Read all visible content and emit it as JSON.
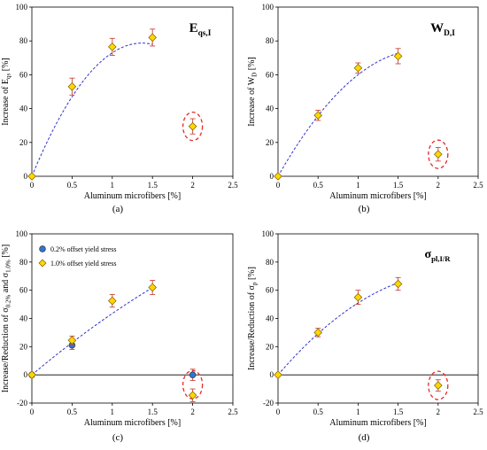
{
  "chart_data": [
    {
      "type": "scatter",
      "panel_label": "(a)",
      "tag": "E",
      "tag_sub": "qs,I",
      "xlabel": "Aluminum microfibers [%]",
      "ylabel": "Increase of E",
      "ylabel_sub": "qs",
      "ylabel_suffix": " [%]",
      "xlim": [
        0,
        2.5
      ],
      "ylim": [
        0,
        100
      ],
      "x_ticks": [
        0,
        0.5,
        1,
        1.5,
        2,
        2.5
      ],
      "y_ticks": [
        0,
        20,
        40,
        60,
        80,
        100
      ],
      "x_tick_labels": [
        "0",
        "0.5",
        "1",
        "1.5",
        "2",
        "2.5"
      ],
      "y_tick_labels": [
        "0",
        "20",
        "40",
        "60",
        "80",
        "100"
      ],
      "series": [
        {
          "marker": "diamond",
          "color": "#FFD700",
          "points": [
            {
              "x": 0,
              "y": 0,
              "err": 0
            },
            {
              "x": 0.5,
              "y": 53,
              "err": 5
            },
            {
              "x": 1,
              "y": 76.5,
              "err": 5
            },
            {
              "x": 1.5,
              "y": 82,
              "err": 5
            },
            {
              "x": 2,
              "y": 29.5,
              "err": 4.5
            }
          ]
        }
      ],
      "trend": {
        "coef": [
          0,
          115,
          -42
        ],
        "x_range": [
          0,
          1.5
        ],
        "color": "#3333CC"
      },
      "outlier_ellipse": {
        "x": 2,
        "y": 29.5,
        "color": "#E8282A"
      }
    },
    {
      "type": "scatter",
      "panel_label": "(b)",
      "tag": "W",
      "tag_sub": "D,I",
      "xlabel": "Aluminum microfibers [%]",
      "ylabel": "Increase of W",
      "ylabel_sub": "D",
      "ylabel_suffix": " [%]",
      "xlim": [
        0,
        2.5
      ],
      "ylim": [
        0,
        100
      ],
      "x_ticks": [
        0,
        0.5,
        1,
        1.5,
        2,
        2.5
      ],
      "y_ticks": [
        0,
        20,
        40,
        60,
        80,
        100
      ],
      "x_tick_labels": [
        "0",
        "0.5",
        "1",
        "1.5",
        "2",
        "2.5"
      ],
      "y_tick_labels": [
        "0",
        "20",
        "40",
        "60",
        "80",
        "100"
      ],
      "series": [
        {
          "marker": "diamond",
          "color": "#FFD700",
          "points": [
            {
              "x": 0,
              "y": 0,
              "err": 0
            },
            {
              "x": 0.5,
              "y": 36,
              "err": 3
            },
            {
              "x": 1,
              "y": 64,
              "err": 3
            },
            {
              "x": 1.5,
              "y": 71,
              "err": 4.5
            },
            {
              "x": 2,
              "y": 13,
              "err": 4
            }
          ]
        }
      ],
      "trend": {
        "coef": [
          0,
          83,
          -23
        ],
        "x_range": [
          0,
          1.5
        ],
        "color": "#3333CC"
      },
      "outlier_ellipse": {
        "x": 2,
        "y": 13,
        "color": "#E8282A"
      }
    },
    {
      "type": "scatter",
      "panel_label": "(c)",
      "xlabel": "Aluminum microfibers [%]",
      "ylabel": "Increase/Reduction of σ",
      "ylabel_sub": "0.2%",
      "ylabel_mid": " and σ",
      "ylabel_sub2": "1.0%",
      "ylabel_suffix": " [%]",
      "xlim": [
        0,
        2.5
      ],
      "ylim": [
        -20,
        100
      ],
      "x_ticks": [
        0,
        0.5,
        1,
        1.5,
        2,
        2.5
      ],
      "y_ticks": [
        -20,
        0,
        20,
        40,
        60,
        80,
        100
      ],
      "x_tick_labels": [
        "0",
        "0.5",
        "1",
        "1.5",
        "2",
        "2.5"
      ],
      "y_tick_labels": [
        "-20",
        "0",
        "20",
        "40",
        "60",
        "80",
        "100"
      ],
      "zero_line": true,
      "legend": {
        "placement": "top-left"
      },
      "series": [
        {
          "name": "0.2% offset yield stress",
          "marker": "circle",
          "color": "#2E75D4",
          "points": [
            {
              "x": 0,
              "y": 0,
              "err": 0
            },
            {
              "x": 0.5,
              "y": 21,
              "err": 3
            },
            {
              "x": 2,
              "y": 0,
              "err": 4
            }
          ]
        },
        {
          "name": "1.0% offset yield stress",
          "marker": "diamond",
          "color": "#FFD700",
          "points": [
            {
              "x": 0,
              "y": 0,
              "err": 0
            },
            {
              "x": 0.5,
              "y": 24.5,
              "err": 3
            },
            {
              "x": 1,
              "y": 52.5,
              "err": 4.5
            },
            {
              "x": 1.5,
              "y": 62,
              "err": 5
            },
            {
              "x": 2,
              "y": -14.5,
              "err": 4.5
            }
          ]
        }
      ],
      "trend": {
        "coef": [
          0,
          48,
          -4.5
        ],
        "x_range": [
          0,
          1.5
        ],
        "color": "#3333CC"
      },
      "outlier_ellipse": {
        "x": 2,
        "y": -7,
        "color": "#E8282A"
      }
    },
    {
      "type": "scatter",
      "panel_label": "(d)",
      "tag": "σ",
      "tag_sub": "pl,I/R",
      "xlabel": "Aluminum microfibers [%]",
      "ylabel": "Increase/Reduction of σ",
      "ylabel_sub": "p",
      "ylabel_suffix": " [%]",
      "xlim": [
        0,
        2.5
      ],
      "ylim": [
        -20,
        100
      ],
      "x_ticks": [
        0,
        0.5,
        1,
        1.5,
        2,
        2.5
      ],
      "y_ticks": [
        -20,
        0,
        20,
        40,
        60,
        80,
        100
      ],
      "x_tick_labels": [
        "0",
        "0.5",
        "1",
        "1.5",
        "2",
        "2.5"
      ],
      "y_tick_labels": [
        "-20",
        "0",
        "20",
        "40",
        "60",
        "80",
        "100"
      ],
      "zero_line": true,
      "series": [
        {
          "marker": "diamond",
          "color": "#FFD700",
          "points": [
            {
              "x": 0,
              "y": 0,
              "err": 0
            },
            {
              "x": 0.5,
              "y": 30,
              "err": 3
            },
            {
              "x": 1,
              "y": 55,
              "err": 5
            },
            {
              "x": 1.5,
              "y": 64.5,
              "err": 4.5
            },
            {
              "x": 2,
              "y": -7.5,
              "err": 4
            }
          ]
        }
      ],
      "trend": {
        "coef": [
          0,
          66,
          -15
        ],
        "x_range": [
          0,
          1.5
        ],
        "color": "#3333CC"
      },
      "outlier_ellipse": {
        "x": 2,
        "y": -7.5,
        "color": "#E8282A"
      }
    }
  ]
}
